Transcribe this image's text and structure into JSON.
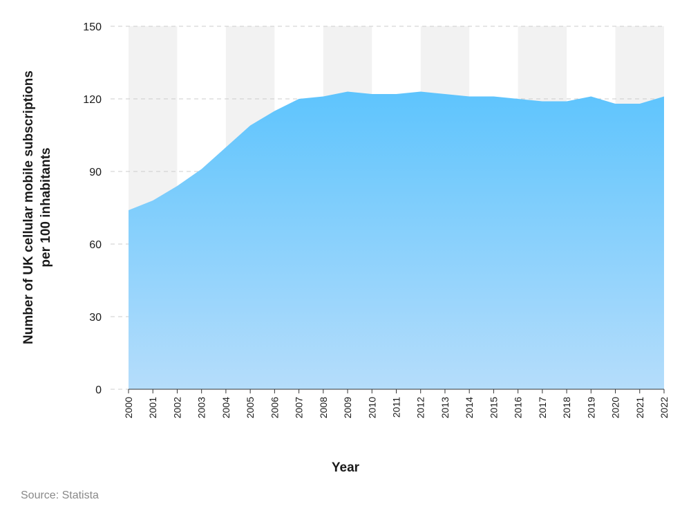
{
  "chart_data": {
    "type": "area",
    "ylabel": [
      "Number of UK cellular mobile subscriptions",
      "per 100 inhabitants"
    ],
    "xlabel": "Year",
    "source": "Source: Statista",
    "x": [
      2000,
      2001,
      2002,
      2003,
      2004,
      2005,
      2006,
      2007,
      2008,
      2009,
      2010,
      2011,
      2012,
      2013,
      2014,
      2015,
      2016,
      2017,
      2018,
      2019,
      2020,
      2021,
      2022
    ],
    "values": [
      74,
      78,
      84,
      91,
      100,
      109,
      115,
      120,
      121,
      123,
      122,
      122,
      123,
      122,
      121,
      121,
      120,
      119,
      119,
      121,
      118,
      118,
      121
    ],
    "color": "#5ec4fd",
    "xlim": [
      2000,
      2022
    ],
    "ylim": [
      0,
      150
    ],
    "yticks": [
      0,
      30,
      60,
      90,
      120,
      150
    ],
    "grid": true
  }
}
